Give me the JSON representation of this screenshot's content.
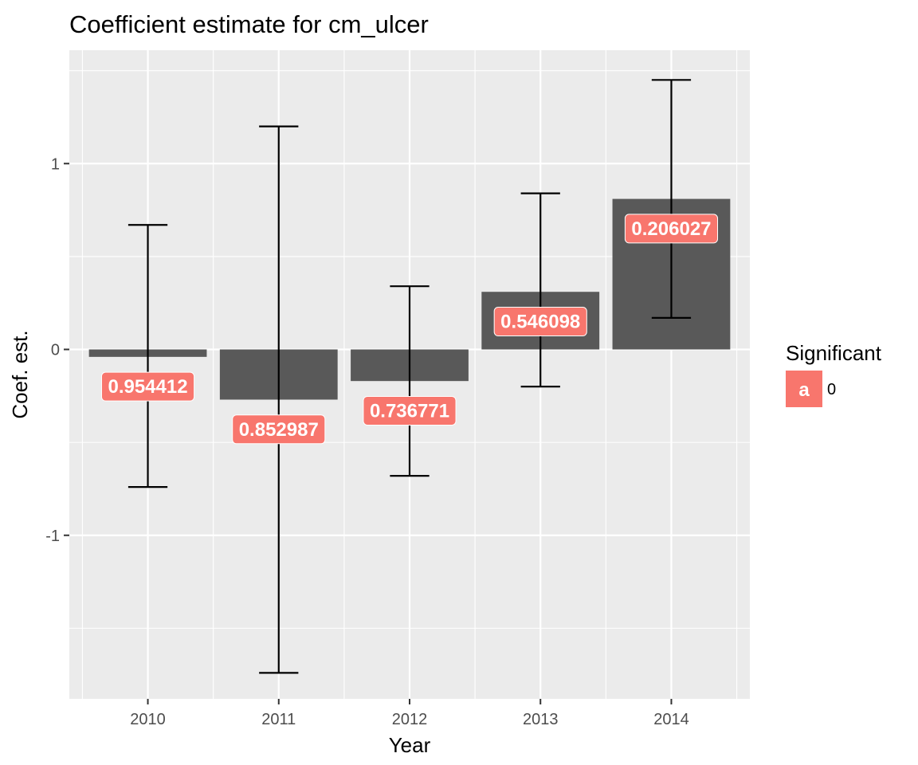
{
  "chart_data": {
    "type": "bar",
    "title": "Coefficient estimate for cm_ulcer",
    "xlabel": "Year",
    "ylabel": "Coef. est.",
    "categories": [
      "2010",
      "2011",
      "2012",
      "2013",
      "2014"
    ],
    "values": [
      -0.04,
      -0.27,
      -0.17,
      0.31,
      0.81
    ],
    "error_low": [
      -0.74,
      -1.74,
      -0.68,
      -0.2,
      0.17
    ],
    "error_high": [
      0.67,
      1.2,
      0.34,
      0.84,
      1.45
    ],
    "data_labels": [
      "0.954412",
      "0.852987",
      "0.736771",
      "0.546098",
      "0.206027"
    ],
    "data_label_y": [
      -0.2,
      -0.43,
      -0.33,
      0.15,
      0.65
    ],
    "ylim": [
      -1.88,
      1.61
    ],
    "yticks": [
      -1,
      0,
      1
    ],
    "ytick_labels": [
      "-1",
      "0",
      "1"
    ],
    "grid": true,
    "bar_color": "#595959",
    "errorbar_color": "#000000",
    "panel_background": "#ebebeb",
    "grid_color": "#ffffff",
    "label_fill": "#f8766d",
    "legend": {
      "title": "Significant",
      "position": "right",
      "entries": [
        {
          "glyph": "a",
          "label": "0",
          "color": "#f8766d"
        }
      ]
    }
  }
}
